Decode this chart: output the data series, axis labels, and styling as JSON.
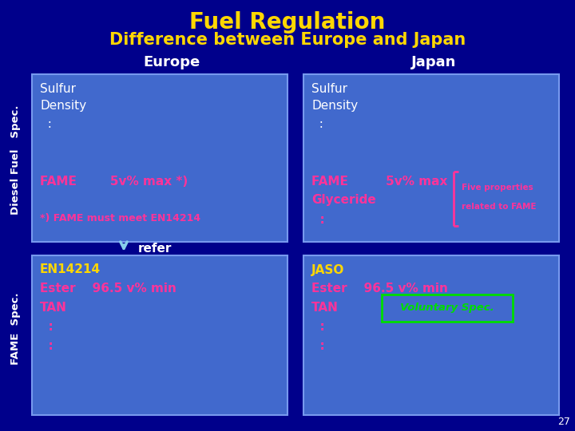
{
  "title1": "Fuel Regulation",
  "title2": "Difference between Europe and Japan",
  "title1_color": "#FFD700",
  "title2_color": "#FFD700",
  "bg_color": "#00008B",
  "box_color": "#4169CD",
  "box_border_color": "#7799EE",
  "europe_label": "Europe",
  "japan_label": "Japan",
  "label_color": "#FFFFFF",
  "side_label_diesel": "Diesel Fuel   Spec.",
  "side_label_fame": "FAME  Spec.",
  "side_label_color": "#FFFFFF",
  "europe_top_white": [
    "Sulfur",
    "Density",
    "  :"
  ],
  "europe_fame_line": "FAME        5v% max *)",
  "europe_note_line": "*) FAME must meet EN14214",
  "japan_top_white": [
    "Sulfur",
    "Density",
    "  :"
  ],
  "japan_fame_line": "FAME         5v% max",
  "japan_glyceride_line": "Glyceride",
  "japan_colon_line": "  :",
  "japan_bracket_text1": "Five properties",
  "japan_bracket_text2": "related to FAME",
  "europe_bottom_yellow": "EN14214",
  "europe_bottom_red": [
    "Ester    96.5 v% min",
    "TAN",
    "  :",
    "  :"
  ],
  "japan_bottom_yellow": "JASO",
  "japan_bottom_red": [
    "Ester    96.5 v% min",
    "TAN",
    "  :",
    "  :"
  ],
  "voluntary_spec_text": "Voluntary Spec.",
  "voluntary_spec_color": "#00DD00",
  "voluntary_spec_border": "#00DD00",
  "refer_text": "refer",
  "refer_color": "#FFFFFF",
  "arrow_color": "#87CEEB",
  "page_num": "27",
  "page_num_color": "#FFFFFF",
  "white_color": "#FFFFFF",
  "red_color": "#FF3399",
  "yellow_color": "#FFD700",
  "bracket_color": "#FF3399"
}
